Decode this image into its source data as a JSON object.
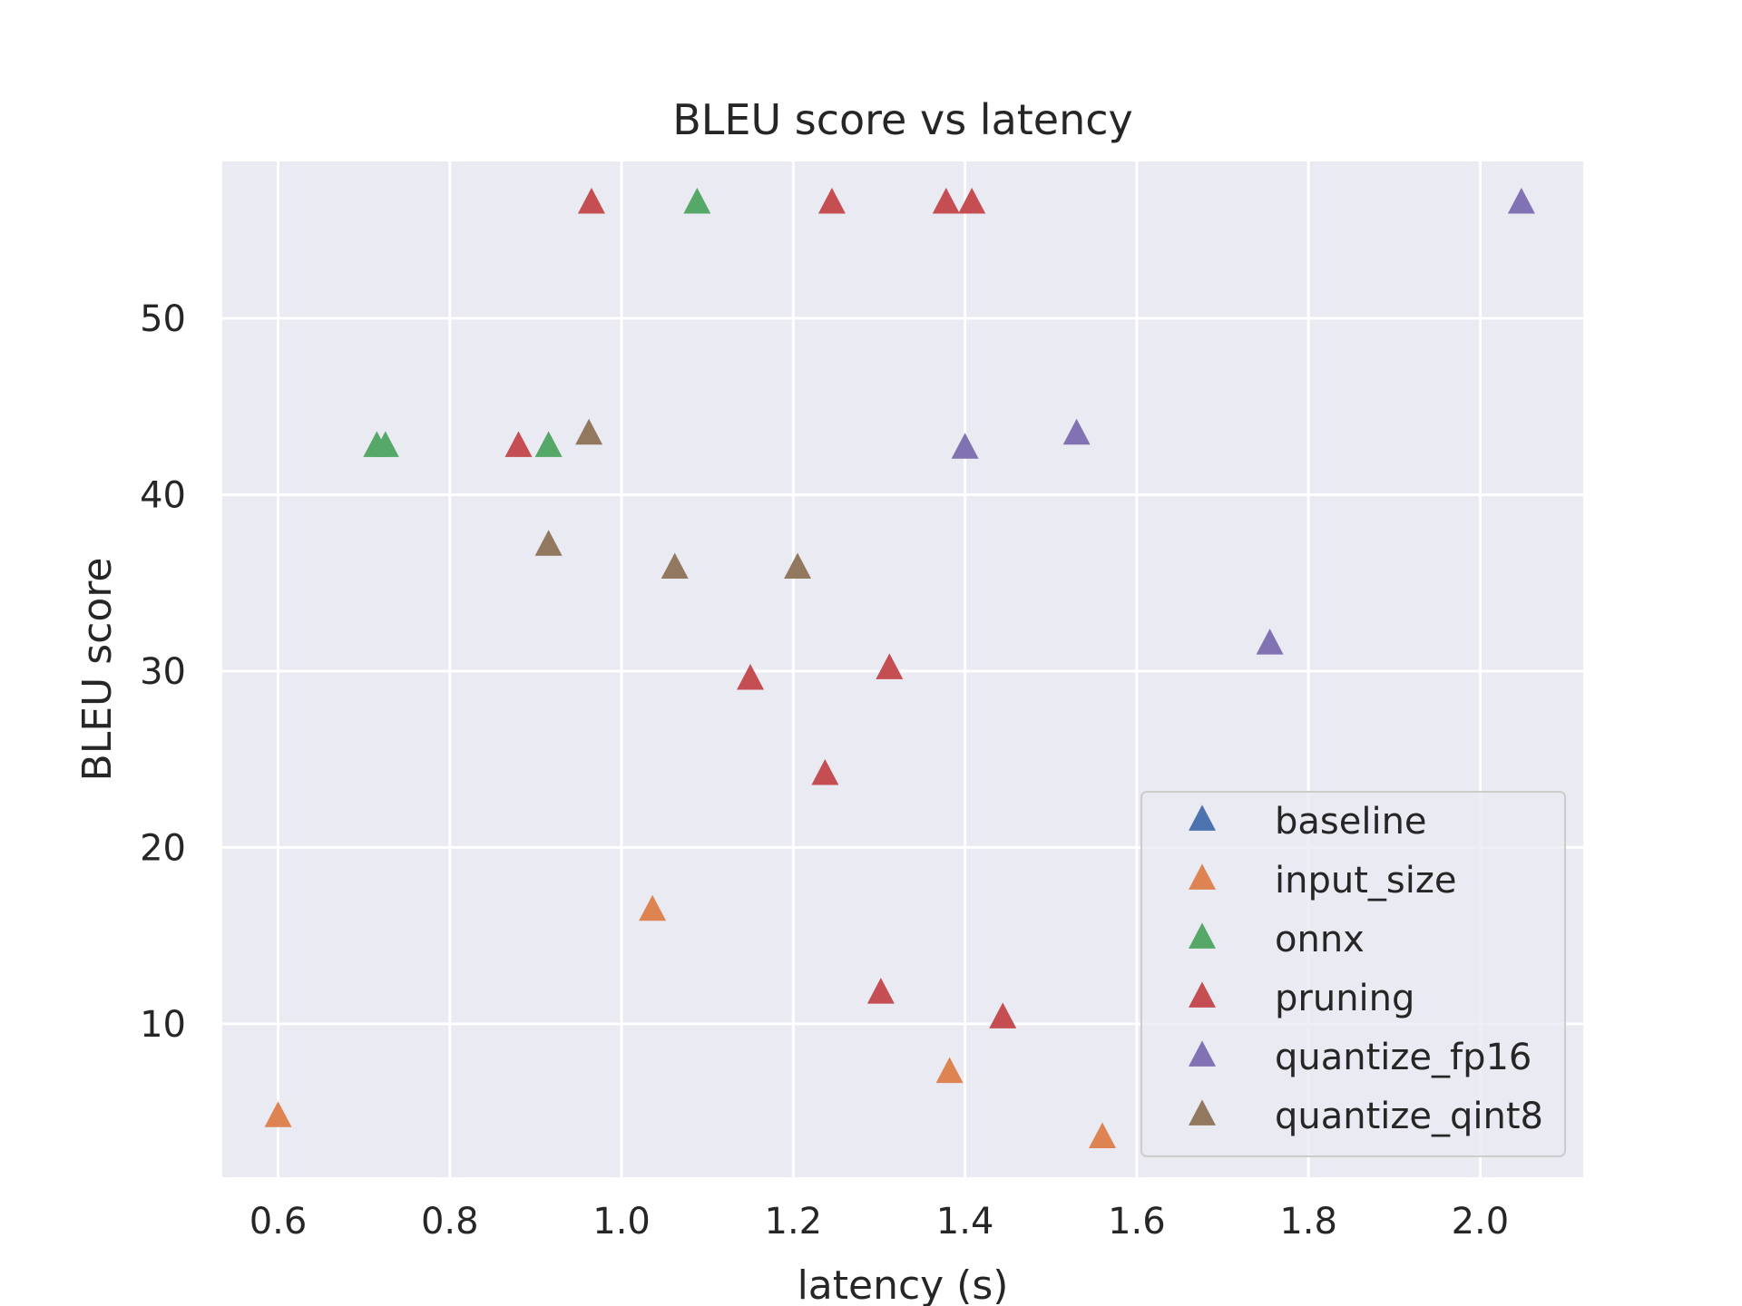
{
  "chart_data": {
    "type": "scatter",
    "title": "BLEU score vs latency",
    "xlabel": "latency (s)",
    "ylabel": "BLEU score",
    "xlim": [
      0.535,
      2.12
    ],
    "ylim": [
      1.3,
      58.9
    ],
    "xticks": [
      0.6,
      0.8,
      1.0,
      1.2,
      1.4,
      1.6,
      1.8,
      2.0
    ],
    "xtick_labels": [
      "0.6",
      "0.8",
      "1.0",
      "1.2",
      "1.4",
      "1.6",
      "1.8",
      "2.0"
    ],
    "yticks": [
      10,
      20,
      30,
      40,
      50
    ],
    "ytick_labels": [
      "10",
      "20",
      "30",
      "40",
      "50"
    ],
    "grid": true,
    "marker": "triangle-up",
    "legend_position": "lower-right",
    "background": "#eaeaf2",
    "series": [
      {
        "name": "baseline",
        "color": "#4c72b0",
        "points": []
      },
      {
        "name": "input_size",
        "color": "#dd8452",
        "points": [
          {
            "x": 0.6,
            "y": 4.7
          },
          {
            "x": 1.036,
            "y": 16.4
          },
          {
            "x": 1.382,
            "y": 7.2
          },
          {
            "x": 1.56,
            "y": 3.5
          }
        ]
      },
      {
        "name": "onnx",
        "color": "#55a868",
        "points": [
          {
            "x": 0.715,
            "y": 42.7
          },
          {
            "x": 0.725,
            "y": 42.7
          },
          {
            "x": 0.915,
            "y": 42.7
          },
          {
            "x": 1.088,
            "y": 56.5
          }
        ]
      },
      {
        "name": "pruning",
        "color": "#c44e52",
        "points": [
          {
            "x": 0.88,
            "y": 42.7
          },
          {
            "x": 0.965,
            "y": 56.5
          },
          {
            "x": 1.15,
            "y": 29.5
          },
          {
            "x": 1.237,
            "y": 24.1
          },
          {
            "x": 1.245,
            "y": 56.5
          },
          {
            "x": 1.302,
            "y": 11.7
          },
          {
            "x": 1.312,
            "y": 30.1
          },
          {
            "x": 1.378,
            "y": 56.5
          },
          {
            "x": 1.408,
            "y": 56.5
          },
          {
            "x": 1.444,
            "y": 10.3
          }
        ]
      },
      {
        "name": "quantize_fp16",
        "color": "#8172b3",
        "points": [
          {
            "x": 1.4,
            "y": 42.6
          },
          {
            "x": 1.53,
            "y": 43.4
          },
          {
            "x": 1.755,
            "y": 31.5
          },
          {
            "x": 2.048,
            "y": 56.5
          }
        ]
      },
      {
        "name": "quantize_qint8",
        "color": "#937860",
        "points": [
          {
            "x": 0.915,
            "y": 37.1
          },
          {
            "x": 0.962,
            "y": 43.4
          },
          {
            "x": 1.062,
            "y": 35.8
          },
          {
            "x": 1.205,
            "y": 35.8
          }
        ]
      }
    ]
  }
}
